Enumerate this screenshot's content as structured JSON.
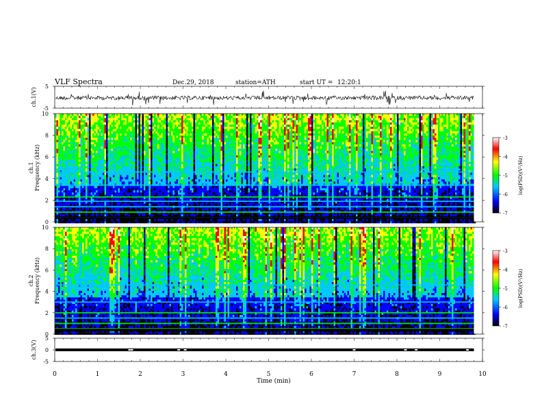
{
  "header": {
    "title": "VLF Spectra",
    "date": "Dec.29, 2018",
    "station": "station=ATH",
    "start": "start UT =",
    "start_time": "12:20:1"
  },
  "chart_data": [
    {
      "type": "line",
      "panel": "ch1-waveform",
      "ylabel": "ch.1(V)",
      "ylim": [
        -5,
        5
      ],
      "y_ticks": [
        "5",
        "-5"
      ],
      "xlim": [
        0,
        10
      ],
      "baseline": 0.0,
      "range_note": "noisy waveform around about 0 V spanning roughly -2 to +2 V",
      "x_end": 9.8
    },
    {
      "type": "heatmap",
      "panel": "ch1-spectrogram",
      "ylabel": "ch.1\nFrequency (kHz)",
      "ylabel_lines": [
        "ch.1",
        "Frequency (kHz)"
      ],
      "ylim": [
        0,
        10
      ],
      "y_ticks": [
        "0",
        "2",
        "4",
        "6",
        "8",
        "10"
      ],
      "xlim": [
        0,
        10
      ],
      "x_end": 9.8,
      "colorbar": {
        "label": "log(PSD)(V²/Hz)",
        "range": [
          -7,
          -3
        ],
        "ticks": [
          "-3",
          "-4",
          "-5",
          "-6",
          "-7"
        ],
        "colors": [
          "#000000",
          "#0000ff",
          "#00c8ff",
          "#00ff00",
          "#ffff00",
          "#ff0000",
          "#ffffff"
        ]
      },
      "bands_khz": [
        0.4,
        0.9,
        1.4,
        1.9,
        2.3,
        3.4,
        4.6
      ],
      "band_values": [
        -5.1,
        -5.3,
        -5.6,
        -5.4,
        -4.9,
        -5.7,
        -5.4
      ]
    },
    {
      "type": "heatmap",
      "panel": "ch2-spectrogram",
      "ylabel": "ch.2\nFrequency (kHz)",
      "ylabel_lines": [
        "ch.2",
        "Frequency (kHz)"
      ],
      "ylim": [
        0,
        10
      ],
      "y_ticks": [
        "0",
        "2",
        "4",
        "6",
        "8",
        "10"
      ],
      "xlim": [
        0,
        10
      ],
      "x_end": 9.8,
      "colorbar": {
        "label": "log(PSD)(V²/Hz)",
        "range": [
          -7,
          -3
        ],
        "ticks": [
          "-3",
          "-4",
          "-5",
          "-6",
          "-7"
        ],
        "colors": [
          "#000000",
          "#0000ff",
          "#00c8ff",
          "#00ff00",
          "#ffff00",
          "#ff0000",
          "#ffffff"
        ]
      },
      "bands_khz": [
        0.5,
        1.0,
        1.5,
        2.0,
        3.0,
        4.6
      ],
      "band_values": [
        -5.0,
        -5.3,
        -5.5,
        -5.2,
        -5.6,
        -5.4
      ]
    },
    {
      "type": "line",
      "panel": "ch3-waveform",
      "ylabel": "ch.3(V)",
      "ylim": [
        -5,
        5
      ],
      "y_ticks": [
        "5",
        "0",
        "-5"
      ],
      "xlim": [
        0,
        10
      ],
      "baseline": 0.0,
      "x_end": 9.8,
      "gaps_min": [
        1.75,
        1.8,
        2.9,
        3.05,
        7.0,
        8.2,
        8.45,
        9.65
      ]
    }
  ],
  "x_axis": {
    "label": "Time (min)",
    "ticks": [
      "0",
      "1",
      "2",
      "3",
      "4",
      "5",
      "6",
      "7",
      "8",
      "9",
      "10"
    ]
  }
}
